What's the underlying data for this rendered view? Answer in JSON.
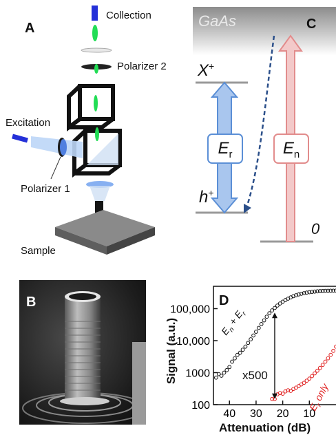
{
  "panel_a": {
    "letter": "A",
    "collection": "Collection",
    "polarizer2": "Polarizer 2",
    "excitation": "Excitation",
    "polarizer1": "Polarizer 1",
    "sample": "Sample"
  },
  "panel_b": {
    "letter": "B"
  },
  "panel_c": {
    "letter": "C",
    "gaas": "GaAs",
    "x_plus": "X",
    "x_plus_sup": "+",
    "h_plus": "h",
    "h_plus_sup": "+",
    "zero": "0",
    "er_main": "E",
    "er_sub": "r",
    "en_main": "E",
    "en_sub": "n",
    "colors": {
      "blue": "#5b8fd6",
      "blue_fill": "#a9c6ee",
      "red": "#e28c8c",
      "red_fill": "#f3c9c9"
    }
  },
  "panel_d": {
    "letter": "D",
    "ylabel": "Signal (a.u.)",
    "xlabel": "Attenuation (dB)",
    "annotation_x500": "x500",
    "label_sum": "E",
    "label_sum_sub1": "n",
    "label_sum_plus": " + E",
    "label_sum_sub2": "r",
    "label_er": "E",
    "label_er_sub": "r",
    "label_er_rest": " only",
    "chart_data": {
      "type": "scatter",
      "x_scale": "linear, reversed",
      "y_scale": "log",
      "xlim": [
        46,
        0
      ],
      "ylim": [
        100,
        500000
      ],
      "x_ticks": [
        40,
        30,
        20,
        10
      ],
      "y_ticks": [
        100,
        1000,
        10000,
        100000
      ],
      "y_tick_labels": [
        "100",
        "1000",
        "10,000",
        "100,000"
      ],
      "series": [
        {
          "name": "En + Er",
          "color": "#111111",
          "x": [
            45,
            44,
            43,
            42,
            41,
            40,
            39,
            38,
            37,
            36,
            35,
            34,
            33,
            32,
            31,
            30,
            29,
            28,
            27,
            26,
            25,
            24,
            23,
            22,
            21,
            20,
            19,
            18,
            17,
            16,
            15,
            14,
            13,
            12,
            11,
            10,
            9,
            8,
            7,
            6,
            5,
            4,
            3,
            2,
            1,
            0
          ],
          "y": [
            700,
            900,
            800,
            1000,
            1200,
            1500,
            2200,
            2800,
            3600,
            4200,
            5200,
            6500,
            8500,
            11000,
            14500,
            19000,
            25000,
            33000,
            43000,
            56000,
            72000,
            88000,
            105000,
            125000,
            145000,
            165000,
            185000,
            205000,
            225000,
            245000,
            262000,
            278000,
            292000,
            305000,
            317000,
            327000,
            335000,
            342000,
            348000,
            353000,
            357000,
            360000,
            362000,
            364000,
            365000,
            366000
          ]
        },
        {
          "name": "Er only",
          "color": "#e02020",
          "x": [
            24,
            23,
            22,
            21,
            20,
            19,
            18,
            17,
            16,
            15,
            14,
            13,
            12,
            11,
            10,
            9,
            8,
            7,
            6,
            5,
            4,
            3,
            2,
            1,
            0
          ],
          "y": [
            150,
            150,
            210,
            230,
            220,
            260,
            280,
            270,
            310,
            340,
            380,
            430,
            480,
            560,
            650,
            780,
            950,
            1150,
            1400,
            1750,
            2200,
            2800,
            3600,
            4800,
            6500
          ]
        }
      ],
      "arrow_at_x": 23,
      "arrow_from_y": 150,
      "arrow_to_y": 75000
    }
  }
}
